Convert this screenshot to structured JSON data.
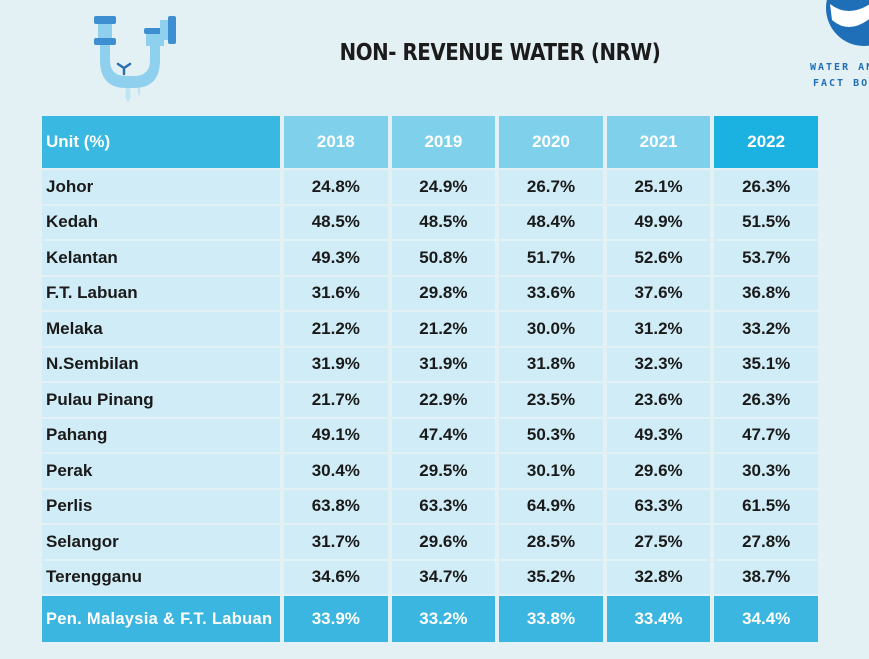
{
  "title": "NON- REVENUE WATER (NRW)",
  "brand": {
    "line1": "WATER AND",
    "line2": "FACT BOOK"
  },
  "colors": {
    "header": "#7fd0ea",
    "header_dark": "#39b8e2",
    "row": "#d0ecf6",
    "total_row": "#3bb6e0",
    "background": "#e3f1f4"
  },
  "table": {
    "unit_label": "Unit (%)",
    "years": [
      "2018",
      "2019",
      "2020",
      "2021",
      "2022"
    ],
    "rows": [
      {
        "state": "Johor",
        "values": [
          "24.8%",
          "24.9%",
          "26.7%",
          "25.1%",
          "26.3%"
        ]
      },
      {
        "state": "Kedah",
        "values": [
          "48.5%",
          "48.5%",
          "48.4%",
          "49.9%",
          "51.5%"
        ]
      },
      {
        "state": "Kelantan",
        "values": [
          "49.3%",
          "50.8%",
          "51.7%",
          "52.6%",
          "53.7%"
        ]
      },
      {
        "state": "F.T. Labuan",
        "values": [
          "31.6%",
          "29.8%",
          "33.6%",
          "37.6%",
          "36.8%"
        ]
      },
      {
        "state": "Melaka",
        "values": [
          "21.2%",
          "21.2%",
          "30.0%",
          "31.2%",
          "33.2%"
        ]
      },
      {
        "state": "N.Sembilan",
        "values": [
          "31.9%",
          "31.9%",
          "31.8%",
          "32.3%",
          "35.1%"
        ]
      },
      {
        "state": "Pulau Pinang",
        "values": [
          "21.7%",
          "22.9%",
          "23.5%",
          "23.6%",
          "26.3%"
        ]
      },
      {
        "state": "Pahang",
        "values": [
          "49.1%",
          "47.4%",
          "50.3%",
          "49.3%",
          "47.7%"
        ]
      },
      {
        "state": "Perak",
        "values": [
          "30.4%",
          "29.5%",
          "30.1%",
          "29.6%",
          "30.3%"
        ]
      },
      {
        "state": "Perlis",
        "values": [
          "63.8%",
          "63.3%",
          "64.9%",
          "63.3%",
          "61.5%"
        ]
      },
      {
        "state": "Selangor",
        "values": [
          "31.7%",
          "29.6%",
          "28.5%",
          "27.5%",
          "27.8%"
        ]
      },
      {
        "state": "Terengganu",
        "values": [
          "34.6%",
          "34.7%",
          "35.2%",
          "32.8%",
          "38.7%"
        ]
      }
    ],
    "total": {
      "state": "Pen. Malaysia & F.T. Labuan",
      "values": [
        "33.9%",
        "33.2%",
        "33.8%",
        "33.4%",
        "34.4%"
      ]
    }
  }
}
